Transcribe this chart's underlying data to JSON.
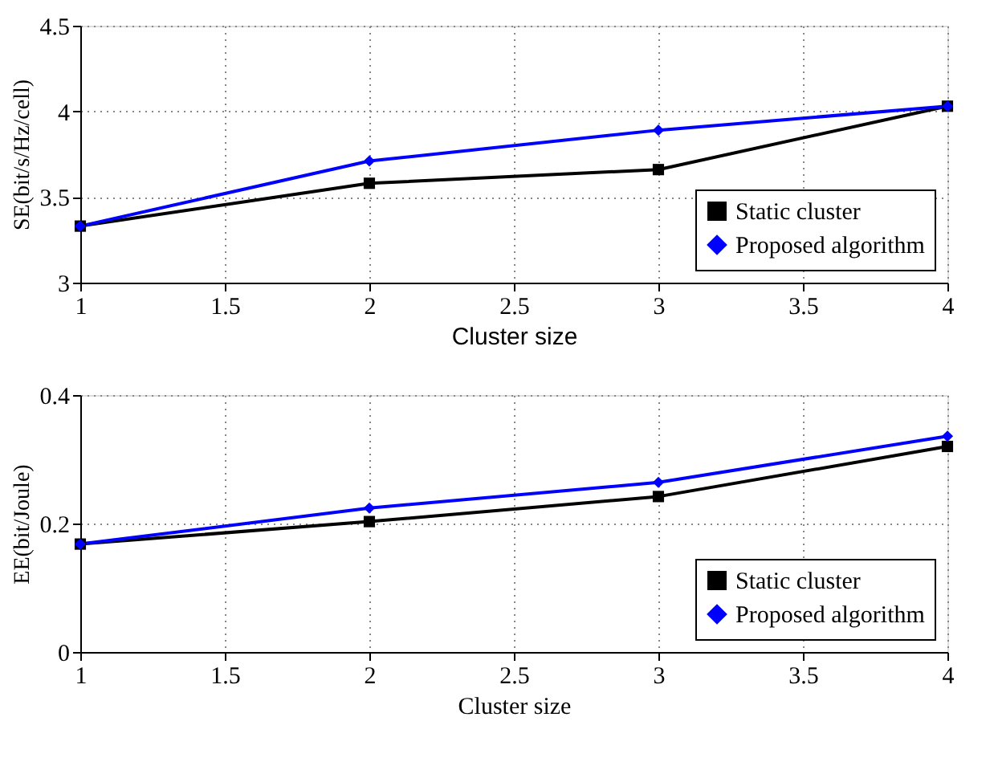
{
  "chart_data": [
    {
      "type": "line",
      "xlabel": "Cluster size",
      "ylabel": "SE(bit/s/Hz/cell)",
      "x": [
        1,
        2,
        3,
        4
      ],
      "series": [
        {
          "name": "Static cluster",
          "color": "#000000",
          "marker": "square",
          "values": [
            3.33,
            3.58,
            3.66,
            4.03
          ]
        },
        {
          "name": "Proposed algorithm",
          "color": "#0000ff",
          "marker": "diamond",
          "values": [
            3.33,
            3.71,
            3.89,
            4.03
          ]
        }
      ],
      "xlim": [
        1,
        4
      ],
      "xticks": [
        1,
        1.5,
        2,
        2.5,
        3,
        3.5,
        4
      ],
      "ylim": [
        3,
        4.5
      ],
      "yticks": [
        3,
        3.5,
        4,
        4.5
      ],
      "grid": true,
      "legend": "bottom right",
      "line_style": "solid"
    },
    {
      "type": "line",
      "xlabel": "Cluster size",
      "ylabel": "EE(bit/Joule)",
      "x": [
        1,
        2,
        3,
        4
      ],
      "series": [
        {
          "name": "Static cluster",
          "color": "#000000",
          "marker": "square",
          "values": [
            0.168,
            0.203,
            0.242,
            0.32
          ]
        },
        {
          "name": "Proposed algorithm",
          "color": "#0000ff",
          "marker": "diamond",
          "values": [
            0.168,
            0.224,
            0.264,
            0.336
          ]
        }
      ],
      "xlim": [
        1,
        4
      ],
      "xticks": [
        1,
        1.5,
        2,
        2.5,
        3,
        3.5,
        4
      ],
      "ylim": [
        0,
        0.4
      ],
      "yticks": [
        0,
        0.2,
        0.4
      ],
      "grid": true,
      "legend": "bottom right",
      "line_style": "solid"
    }
  ]
}
